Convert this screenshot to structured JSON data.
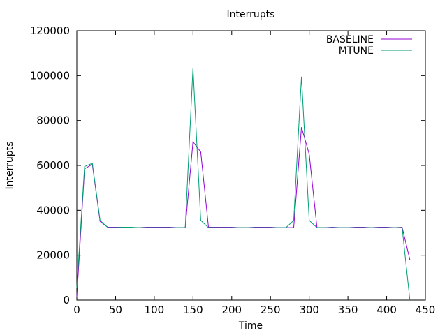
{
  "chart_data": {
    "type": "line",
    "title": "Interrupts",
    "xlabel": "Time",
    "ylabel": "Interrupts",
    "xlim": [
      0,
      450
    ],
    "ylim": [
      0,
      120000
    ],
    "xticks": [
      0,
      50,
      100,
      150,
      200,
      250,
      300,
      350,
      400,
      450
    ],
    "yticks": [
      0,
      20000,
      40000,
      60000,
      80000,
      100000,
      120000
    ],
    "grid": false,
    "legend_position": "top-right",
    "series": [
      {
        "name": "BASELINE",
        "color": "#9400d3",
        "x": [
          0,
          10,
          20,
          30,
          40,
          50,
          60,
          70,
          80,
          90,
          100,
          110,
          120,
          130,
          140,
          150,
          160,
          170,
          180,
          190,
          200,
          210,
          220,
          230,
          240,
          250,
          260,
          270,
          280,
          290,
          300,
          310,
          320,
          330,
          340,
          350,
          360,
          370,
          380,
          390,
          400,
          410,
          420,
          430
        ],
        "y": [
          1500,
          58500,
          60500,
          35000,
          32500,
          32500,
          32500,
          32300,
          32300,
          32500,
          32500,
          32500,
          32500,
          32300,
          32300,
          70500,
          66000,
          32500,
          32500,
          32500,
          32500,
          32300,
          32300,
          32500,
          32500,
          32500,
          32300,
          32300,
          32300,
          77000,
          65000,
          32300,
          32300,
          32500,
          32300,
          32300,
          32500,
          32500,
          32300,
          32500,
          32500,
          32300,
          32500,
          18000
        ]
      },
      {
        "name": "MTUNE",
        "color": "#009e73",
        "x": [
          0,
          10,
          20,
          30,
          40,
          50,
          60,
          70,
          80,
          90,
          100,
          110,
          120,
          130,
          140,
          150,
          160,
          170,
          180,
          190,
          200,
          210,
          220,
          230,
          240,
          250,
          260,
          270,
          280,
          290,
          300,
          310,
          320,
          330,
          340,
          350,
          360,
          370,
          380,
          390,
          400,
          410,
          420,
          430
        ],
        "y": [
          5500,
          59500,
          61000,
          35500,
          32300,
          32300,
          32500,
          32500,
          32300,
          32300,
          32300,
          32300,
          32300,
          32300,
          32300,
          103500,
          35500,
          32300,
          32300,
          32300,
          32300,
          32300,
          32300,
          32300,
          32300,
          32300,
          32300,
          32300,
          35500,
          99500,
          35500,
          32300,
          32300,
          32300,
          32300,
          32300,
          32300,
          32300,
          32300,
          32300,
          32300,
          32300,
          32300,
          0
        ]
      }
    ]
  }
}
